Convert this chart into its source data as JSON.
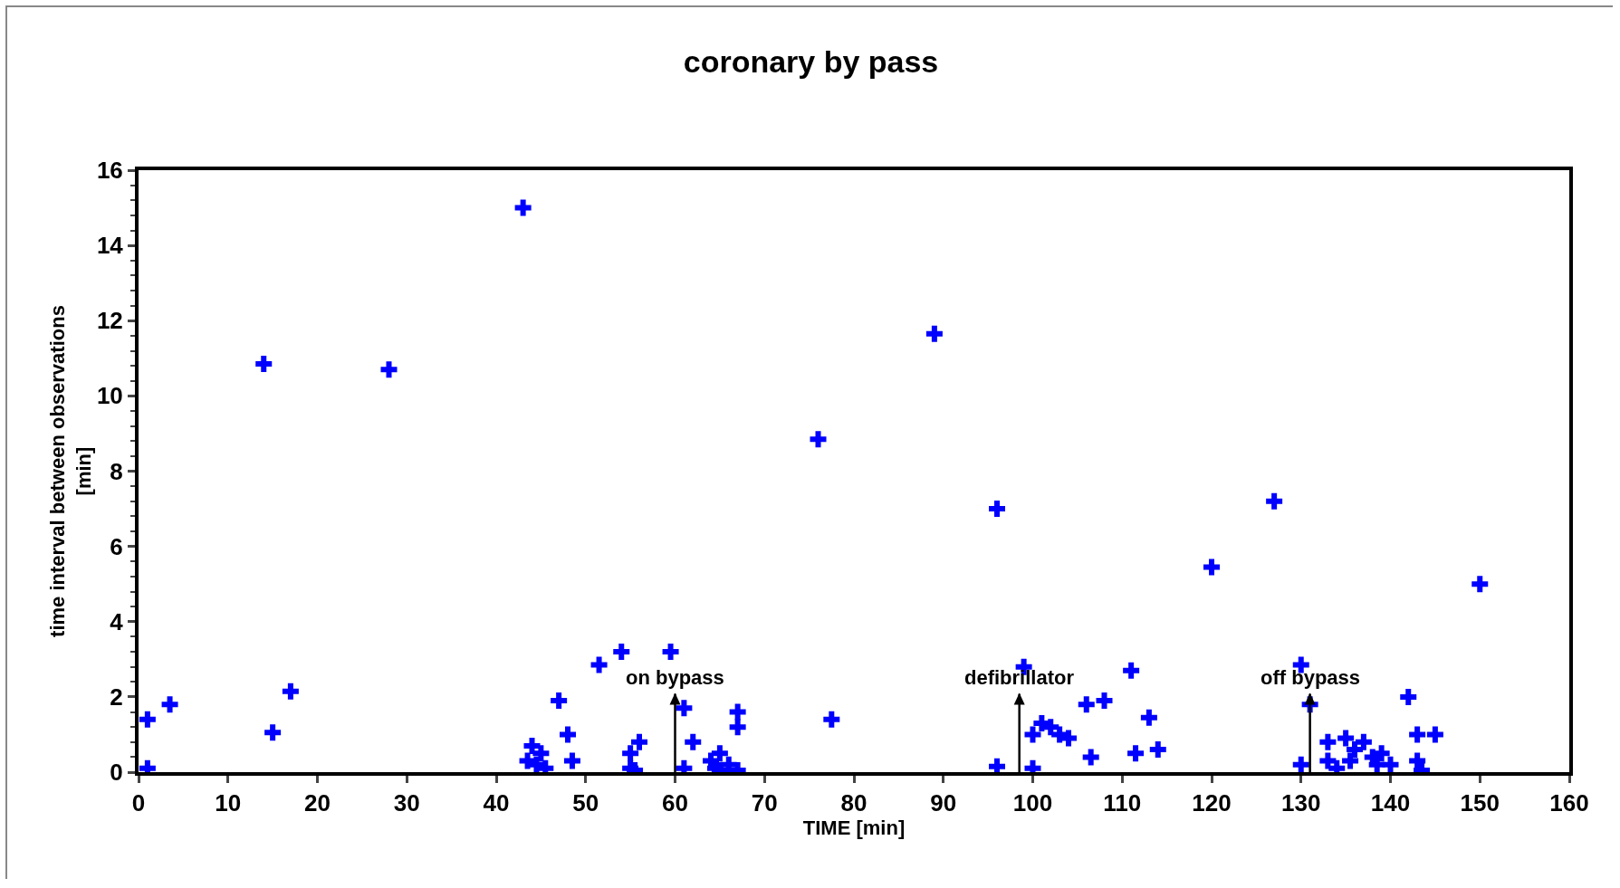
{
  "chart_data": {
    "type": "scatter",
    "title": "coronary by pass",
    "xlabel": "TIME [min]",
    "ylabel": "time interval between observations\n[min]",
    "x": [
      1,
      1,
      3.5,
      14,
      15,
      17,
      28,
      43,
      43.5,
      44,
      44.5,
      45,
      45.5,
      47,
      48,
      48.5,
      51.5,
      54,
      55,
      55,
      55.5,
      56,
      59.5,
      61,
      61,
      62,
      64,
      64.5,
      65,
      65,
      66,
      67,
      67,
      67,
      76,
      77.5,
      89,
      96,
      96,
      99,
      100,
      100,
      101,
      102,
      103,
      104,
      106,
      106.5,
      108,
      111,
      111.5,
      113,
      114,
      120,
      127,
      130,
      130,
      131,
      133,
      133,
      134,
      135,
      135.5,
      136,
      137,
      138,
      138.5,
      139,
      140,
      142,
      143,
      143,
      143.5,
      145,
      150
    ],
    "series": [
      {
        "color": "#0000ff",
        "values": [
          1.4,
          0.1,
          1.8,
          10.85,
          1.05,
          2.15,
          10.7,
          15,
          0.3,
          0.7,
          0.2,
          0.5,
          0.1,
          1.9,
          1,
          0.3,
          2.85,
          3.2,
          0.5,
          0.1,
          0.05,
          0.8,
          3.2,
          1.7,
          0.1,
          0.8,
          0.3,
          0.1,
          0.5,
          0.05,
          0.2,
          1.6,
          1.2,
          0.05,
          8.85,
          1.4,
          11.65,
          7,
          0.15,
          2.8,
          1,
          0.1,
          1.3,
          1.2,
          1,
          0.9,
          1.8,
          0.4,
          1.9,
          2.7,
          0.5,
          1.45,
          0.6,
          5.45,
          7.2,
          2.85,
          0.2,
          1.8,
          0.8,
          0.3,
          0.1,
          0.9,
          0.3,
          0.6,
          0.8,
          0.4,
          0.2,
          0.5,
          0.2,
          2,
          1,
          0.3,
          0.05,
          1,
          5
        ]
      }
    ],
    "ref_lines": [
      {
        "axis": "x",
        "value": 60,
        "label": "on bypass"
      },
      {
        "axis": "x",
        "value": 98.5,
        "label": "defibrillator"
      },
      {
        "axis": "x",
        "value": 131,
        "label": "off bypass"
      }
    ],
    "xlim": [
      0,
      160
    ],
    "xticks": [
      0,
      10,
      20,
      30,
      40,
      50,
      60,
      70,
      80,
      90,
      100,
      110,
      120,
      130,
      140,
      150,
      160
    ],
    "ylim": [
      0,
      16
    ],
    "yticks": [
      0,
      2,
      4,
      6,
      8,
      10,
      12,
      14,
      16
    ],
    "marker": "cross"
  }
}
